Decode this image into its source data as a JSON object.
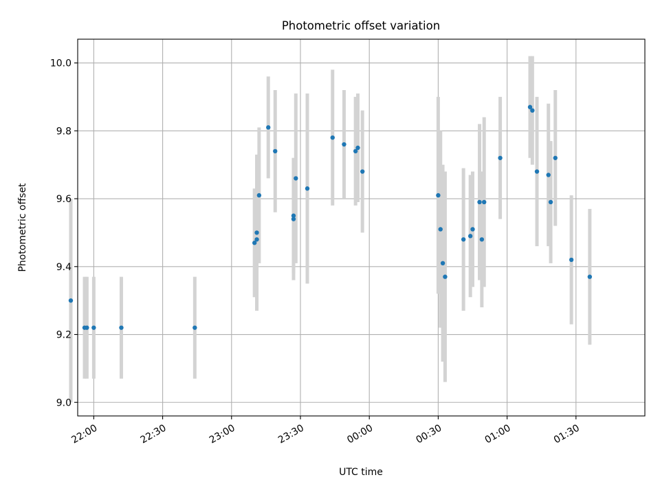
{
  "chart_data": {
    "type": "scatter",
    "title": "Photometric offset variation",
    "xlabel": "UTC time",
    "ylabel": "Photometric offset",
    "x_unit": "UTC time (spans midnight, 2 days)",
    "xlim": [
      "21:53",
      "02:00"
    ],
    "ylim": [
      8.96,
      10.07
    ],
    "x_ticks": [
      "22:00",
      "22:30",
      "23:00",
      "23:30",
      "00:00",
      "00:30",
      "01:00",
      "01:30"
    ],
    "y_ticks": [
      "9.0",
      "9.2",
      "9.4",
      "9.6",
      "9.8",
      "10.0"
    ],
    "grid": true,
    "colors": {
      "point": "#1f77b4",
      "errorbar": "#d3d3d3",
      "grid": "#b0b0b0"
    },
    "points": [
      {
        "t": "21:50",
        "y": 9.3,
        "err": 0.3
      },
      {
        "t": "21:56",
        "y": 9.22,
        "err": 0.15
      },
      {
        "t": "21:57",
        "y": 9.22,
        "err": 0.15
      },
      {
        "t": "22:00",
        "y": 9.22,
        "err": 0.15
      },
      {
        "t": "22:12",
        "y": 9.22,
        "err": 0.15
      },
      {
        "t": "22:44",
        "y": 9.22,
        "err": 0.15
      },
      {
        "t": "23:10",
        "y": 9.47,
        "err": 0.16
      },
      {
        "t": "23:11",
        "y": 9.48,
        "err": 0.19
      },
      {
        "t": "23:11",
        "y": 9.5,
        "err": 0.23
      },
      {
        "t": "23:12",
        "y": 9.61,
        "err": 0.2
      },
      {
        "t": "23:16",
        "y": 9.81,
        "err": 0.15
      },
      {
        "t": "23:19",
        "y": 9.74,
        "err": 0.18
      },
      {
        "t": "23:27",
        "y": 9.55,
        "err": 0.17
      },
      {
        "t": "23:27",
        "y": 9.54,
        "err": 0.18
      },
      {
        "t": "23:28",
        "y": 9.66,
        "err": 0.25
      },
      {
        "t": "23:33",
        "y": 9.63,
        "err": 0.28
      },
      {
        "t": "23:44",
        "y": 9.78,
        "err": 0.2
      },
      {
        "t": "23:49",
        "y": 9.76,
        "err": 0.16
      },
      {
        "t": "23:54",
        "y": 9.74,
        "err": 0.16
      },
      {
        "t": "23:55",
        "y": 9.75,
        "err": 0.16
      },
      {
        "t": "23:57",
        "y": 9.68,
        "err": 0.18
      },
      {
        "t": "00:30",
        "y": 9.61,
        "err": 0.29
      },
      {
        "t": "00:31",
        "y": 9.51,
        "err": 0.29
      },
      {
        "t": "00:32",
        "y": 9.41,
        "err": 0.29
      },
      {
        "t": "00:33",
        "y": 9.37,
        "err": 0.31
      },
      {
        "t": "00:41",
        "y": 9.48,
        "err": 0.21
      },
      {
        "t": "00:44",
        "y": 9.49,
        "err": 0.18
      },
      {
        "t": "00:45",
        "y": 9.51,
        "err": 0.17
      },
      {
        "t": "00:48",
        "y": 9.59,
        "err": 0.23
      },
      {
        "t": "00:49",
        "y": 9.48,
        "err": 0.2
      },
      {
        "t": "00:50",
        "y": 9.59,
        "err": 0.25
      },
      {
        "t": "00:57",
        "y": 9.72,
        "err": 0.18
      },
      {
        "t": "01:10",
        "y": 9.87,
        "err": 0.15
      },
      {
        "t": "01:11",
        "y": 9.86,
        "err": 0.16
      },
      {
        "t": "01:13",
        "y": 9.68,
        "err": 0.22
      },
      {
        "t": "01:18",
        "y": 9.67,
        "err": 0.21
      },
      {
        "t": "01:19",
        "y": 9.59,
        "err": 0.18
      },
      {
        "t": "01:21",
        "y": 9.72,
        "err": 0.2
      },
      {
        "t": "01:28",
        "y": 9.42,
        "err": 0.19
      },
      {
        "t": "01:36",
        "y": 9.37,
        "err": 0.2
      }
    ]
  }
}
